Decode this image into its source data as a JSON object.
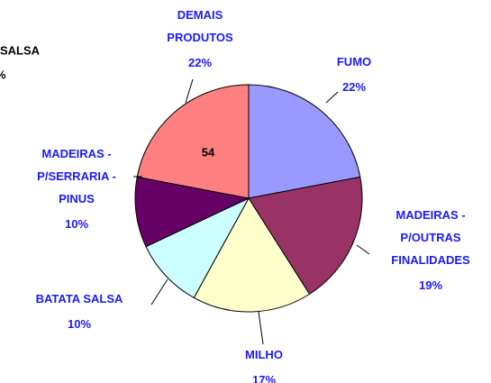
{
  "chart_data": {
    "type": "pie",
    "categories": [
      [
        "FUMO"
      ],
      [
        "MADEIRAS -",
        "P/OUTRAS",
        "FINALIDADES"
      ],
      [
        "MILHO"
      ],
      [
        "BATATA SALSA"
      ],
      [
        "MADEIRAS -",
        "P/SERRARIA -",
        "PINUS"
      ],
      [
        "DEMAIS",
        "PRODUTOS"
      ]
    ],
    "values": [
      22,
      19,
      17,
      10,
      10,
      22
    ],
    "value_labels": [
      "22%",
      "19%",
      "17%",
      "10%",
      "10%",
      "22%"
    ],
    "colors": [
      "#9999ff",
      "#993366",
      "#ffffcc",
      "#ccffff",
      "#660066",
      "#ff8080"
    ],
    "annotations": [
      "54",
      "SALSA",
      "%"
    ]
  }
}
